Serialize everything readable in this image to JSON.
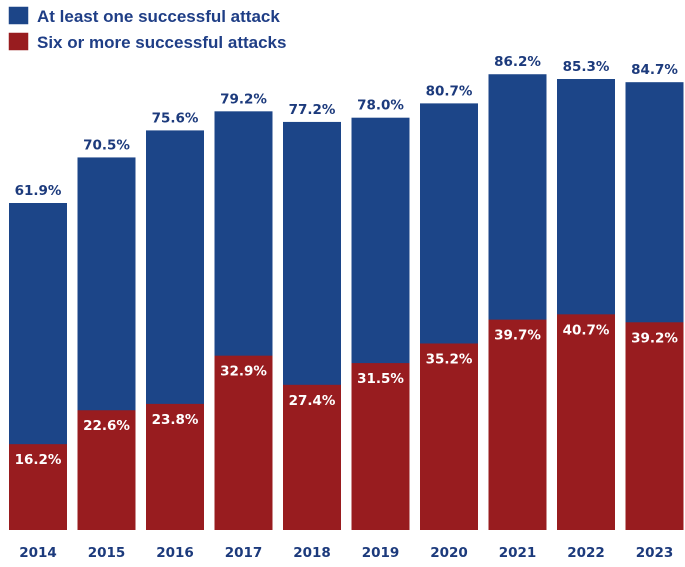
{
  "chart_data": {
    "type": "bar",
    "title": "",
    "xlabel": "",
    "ylabel": "",
    "ylim": [
      0,
      100
    ],
    "categories": [
      "2014",
      "2015",
      "2016",
      "2017",
      "2018",
      "2019",
      "2020",
      "2021",
      "2022",
      "2023"
    ],
    "series": [
      {
        "name": "At least one successful attack",
        "color": "#1c4588",
        "values": [
          61.9,
          70.5,
          75.6,
          79.2,
          77.2,
          78.0,
          80.7,
          86.2,
          85.3,
          84.7
        ],
        "labels": [
          "61.9%",
          "70.5%",
          "75.6%",
          "79.2%",
          "77.2%",
          "78.0%",
          "80.7%",
          "86.2%",
          "85.3%",
          "84.7%"
        ]
      },
      {
        "name": "Six or more successful attacks",
        "color": "#981c1f",
        "values": [
          16.2,
          22.6,
          23.8,
          32.9,
          27.4,
          31.5,
          35.2,
          39.7,
          40.7,
          39.2
        ],
        "labels": [
          "16.2%",
          "22.6%",
          "23.8%",
          "32.9%",
          "27.4%",
          "31.5%",
          "35.2%",
          "39.7%",
          "40.7%",
          "39.2%"
        ]
      }
    ],
    "legend": "top-left"
  }
}
